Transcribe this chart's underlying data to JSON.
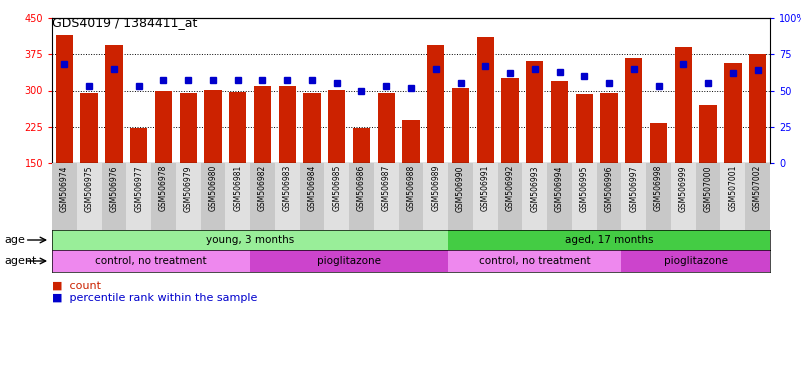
{
  "title": "GDS4019 / 1384411_at",
  "samples": [
    "GSM506974",
    "GSM506975",
    "GSM506976",
    "GSM506977",
    "GSM506978",
    "GSM506979",
    "GSM506980",
    "GSM506981",
    "GSM506982",
    "GSM506983",
    "GSM506984",
    "GSM506985",
    "GSM506986",
    "GSM506987",
    "GSM506988",
    "GSM506989",
    "GSM506990",
    "GSM506991",
    "GSM506992",
    "GSM506993",
    "GSM506994",
    "GSM506995",
    "GSM506996",
    "GSM506997",
    "GSM506998",
    "GSM506999",
    "GSM507000",
    "GSM507001",
    "GSM507002"
  ],
  "counts": [
    415,
    295,
    395,
    222,
    300,
    295,
    302,
    297,
    310,
    310,
    294,
    302,
    222,
    295,
    240,
    395,
    305,
    410,
    325,
    362,
    320,
    292,
    295,
    368,
    232,
    390,
    270,
    357,
    375
  ],
  "percentiles": [
    68,
    53,
    65,
    53,
    57,
    57,
    57,
    57,
    57,
    57,
    57,
    55,
    50,
    53,
    52,
    65,
    55,
    67,
    62,
    65,
    63,
    60,
    55,
    65,
    53,
    68,
    55,
    62,
    64
  ],
  "ylim_left": [
    150,
    450
  ],
  "ylim_right": [
    0,
    100
  ],
  "yticks_left": [
    150,
    225,
    300,
    375,
    450
  ],
  "yticks_right": [
    0,
    25,
    50,
    75,
    100
  ],
  "bar_color": "#cc2200",
  "dot_color": "#0000cc",
  "age_groups": [
    {
      "label": "young, 3 months",
      "start": 0,
      "end": 15,
      "color": "#99ee99"
    },
    {
      "label": "aged, 17 months",
      "start": 16,
      "end": 28,
      "color": "#44cc44"
    }
  ],
  "agent_groups": [
    {
      "label": "control, no treatment",
      "start": 0,
      "end": 7,
      "color": "#ee88ee"
    },
    {
      "label": "pioglitazone",
      "start": 8,
      "end": 15,
      "color": "#cc44cc"
    },
    {
      "label": "control, no treatment",
      "start": 16,
      "end": 22,
      "color": "#ee88ee"
    },
    {
      "label": "pioglitazone",
      "start": 23,
      "end": 28,
      "color": "#cc44cc"
    }
  ],
  "age_label": "age",
  "agent_label": "agent",
  "legend_count_label": "count",
  "legend_pct_label": "percentile rank within the sample"
}
